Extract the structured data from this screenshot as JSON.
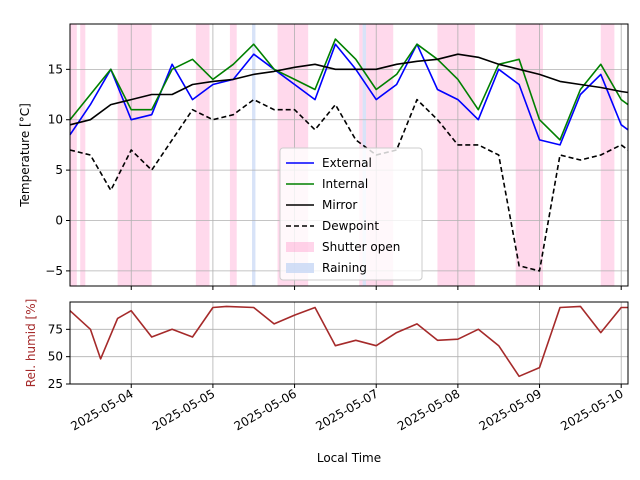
{
  "chart_data": [
    {
      "type": "line",
      "ylabel": "Temperature [°C]",
      "ylim": [
        -6.5,
        19.5
      ],
      "yticks": [
        -5,
        0,
        5,
        10,
        15
      ],
      "xlim": [
        "2025-05-03T06:00",
        "2025-05-10T02:00"
      ],
      "grid": true,
      "legend_position": "center",
      "legend": [
        "External",
        "Internal",
        "Mirror",
        "Dewpoint",
        "Shutter open",
        "Raining"
      ],
      "series": [
        {
          "name": "External",
          "color": "#0000ff",
          "style": "solid",
          "x": [
            "2025-05-03T06:00",
            "2025-05-03T12:00",
            "2025-05-03T18:00",
            "2025-05-04T00:00",
            "2025-05-04T06:00",
            "2025-05-04T12:00",
            "2025-05-04T18:00",
            "2025-05-05T00:00",
            "2025-05-05T06:00",
            "2025-05-05T12:00",
            "2025-05-05T18:00",
            "2025-05-06T00:00",
            "2025-05-06T06:00",
            "2025-05-06T12:00",
            "2025-05-06T18:00",
            "2025-05-07T00:00",
            "2025-05-07T06:00",
            "2025-05-07T12:00",
            "2025-05-07T18:00",
            "2025-05-08T00:00",
            "2025-05-08T06:00",
            "2025-05-08T12:00",
            "2025-05-08T18:00",
            "2025-05-09T00:00",
            "2025-05-09T06:00",
            "2025-05-09T12:00",
            "2025-05-09T18:00",
            "2025-05-10T00:00",
            "2025-05-10T02:00"
          ],
          "y": [
            8.5,
            11.5,
            15,
            10,
            10.5,
            15.5,
            12,
            13.5,
            14,
            16.5,
            15,
            13.5,
            12,
            17.5,
            15,
            12,
            13.5,
            17.5,
            13,
            12,
            10,
            15,
            13.5,
            8,
            7.5,
            12.5,
            14.5,
            9.5,
            9
          ]
        },
        {
          "name": "Internal",
          "color": "#008000",
          "style": "solid",
          "x": [
            "2025-05-03T06:00",
            "2025-05-03T12:00",
            "2025-05-03T18:00",
            "2025-05-04T00:00",
            "2025-05-04T06:00",
            "2025-05-04T12:00",
            "2025-05-04T18:00",
            "2025-05-05T00:00",
            "2025-05-05T06:00",
            "2025-05-05T12:00",
            "2025-05-05T18:00",
            "2025-05-06T00:00",
            "2025-05-06T06:00",
            "2025-05-06T12:00",
            "2025-05-06T18:00",
            "2025-05-07T00:00",
            "2025-05-07T06:00",
            "2025-05-07T12:00",
            "2025-05-07T18:00",
            "2025-05-08T00:00",
            "2025-05-08T06:00",
            "2025-05-08T12:00",
            "2025-05-08T18:00",
            "2025-05-09T00:00",
            "2025-05-09T06:00",
            "2025-05-09T12:00",
            "2025-05-09T18:00",
            "2025-05-10T00:00",
            "2025-05-10T02:00"
          ],
          "y": [
            10,
            12.5,
            15,
            11,
            11,
            15,
            16,
            14,
            15.5,
            17.5,
            15,
            14,
            13,
            18,
            16,
            13,
            14.5,
            17.5,
            16,
            14,
            11,
            15.5,
            16,
            10,
            8,
            13,
            15.5,
            12,
            11.5
          ]
        },
        {
          "name": "Mirror",
          "color": "#000000",
          "style": "solid",
          "x": [
            "2025-05-03T06:00",
            "2025-05-03T12:00",
            "2025-05-03T18:00",
            "2025-05-04T00:00",
            "2025-05-04T06:00",
            "2025-05-04T12:00",
            "2025-05-04T18:00",
            "2025-05-05T00:00",
            "2025-05-05T06:00",
            "2025-05-05T12:00",
            "2025-05-05T18:00",
            "2025-05-06T00:00",
            "2025-05-06T06:00",
            "2025-05-06T12:00",
            "2025-05-06T18:00",
            "2025-05-07T00:00",
            "2025-05-07T06:00",
            "2025-05-07T12:00",
            "2025-05-07T18:00",
            "2025-05-08T00:00",
            "2025-05-08T06:00",
            "2025-05-08T12:00",
            "2025-05-08T18:00",
            "2025-05-09T00:00",
            "2025-05-09T06:00",
            "2025-05-09T12:00",
            "2025-05-09T18:00",
            "2025-05-10T00:00",
            "2025-05-10T02:00"
          ],
          "y": [
            9.5,
            10,
            11.5,
            12,
            12.5,
            12.5,
            13.5,
            13.8,
            14,
            14.5,
            14.8,
            15.2,
            15.5,
            15,
            15,
            15,
            15.5,
            15.8,
            16,
            16.5,
            16.2,
            15.5,
            15,
            14.5,
            13.8,
            13.5,
            13.2,
            12.8,
            12.7
          ]
        },
        {
          "name": "Dewpoint",
          "color": "#000000",
          "style": "dashed",
          "x": [
            "2025-05-03T06:00",
            "2025-05-03T12:00",
            "2025-05-03T18:00",
            "2025-05-04T00:00",
            "2025-05-04T06:00",
            "2025-05-04T12:00",
            "2025-05-04T18:00",
            "2025-05-05T00:00",
            "2025-05-05T06:00",
            "2025-05-05T12:00",
            "2025-05-05T18:00",
            "2025-05-06T00:00",
            "2025-05-06T06:00",
            "2025-05-06T12:00",
            "2025-05-06T18:00",
            "2025-05-07T00:00",
            "2025-05-07T06:00",
            "2025-05-07T12:00",
            "2025-05-07T18:00",
            "2025-05-08T00:00",
            "2025-05-08T06:00",
            "2025-05-08T12:00",
            "2025-05-08T18:00",
            "2025-05-09T00:00",
            "2025-05-09T06:00",
            "2025-05-09T12:00",
            "2025-05-09T18:00",
            "2025-05-10T00:00",
            "2025-05-10T02:00"
          ],
          "y": [
            7,
            6.5,
            3,
            7,
            5,
            8,
            11,
            10,
            10.5,
            12,
            11,
            11,
            9,
            11.5,
            8,
            6.5,
            7,
            12,
            10,
            7.5,
            7.5,
            6.5,
            -4.5,
            -5,
            6.5,
            6,
            6.5,
            7.5,
            7
          ]
        }
      ],
      "shutter_open": [
        [
          "2025-05-03T06:00",
          "2025-05-03T08:00"
        ],
        [
          "2025-05-03T09:00",
          "2025-05-03T10:30"
        ],
        [
          "2025-05-03T20:00",
          "2025-05-04T06:00"
        ],
        [
          "2025-05-04T19:00",
          "2025-05-04T23:00"
        ],
        [
          "2025-05-05T05:00",
          "2025-05-05T07:00"
        ],
        [
          "2025-05-05T19:00",
          "2025-05-06T04:00"
        ],
        [
          "2025-05-06T19:00",
          "2025-05-06T20:00"
        ],
        [
          "2025-05-06T21:00",
          "2025-05-07T05:00"
        ],
        [
          "2025-05-07T18:00",
          "2025-05-08T05:00"
        ],
        [
          "2025-05-08T17:00",
          "2025-05-09T01:00"
        ],
        [
          "2025-05-09T18:00",
          "2025-05-09T22:00"
        ]
      ],
      "raining": [
        [
          "2025-05-05T11:30",
          "2025-05-05T12:30"
        ],
        [
          "2025-05-06T20:00",
          "2025-05-06T21:00"
        ]
      ],
      "colors": {
        "shutter": "#ff69b4",
        "rain": "#c7d7f5"
      }
    },
    {
      "type": "line",
      "ylabel": "Rel. humid [%]",
      "ylim": [
        25,
        100
      ],
      "yticks": [
        25,
        50,
        75
      ],
      "xlabel": "Local Time",
      "xticks": [
        "2025-05-04",
        "2025-05-05",
        "2025-05-06",
        "2025-05-07",
        "2025-05-08",
        "2025-05-09",
        "2025-05-10"
      ],
      "grid": true,
      "series": [
        {
          "name": "",
          "color": "#a52a2a",
          "style": "solid",
          "x": [
            "2025-05-03T06:00",
            "2025-05-03T12:00",
            "2025-05-03T15:00",
            "2025-05-03T20:00",
            "2025-05-04T00:00",
            "2025-05-04T06:00",
            "2025-05-04T12:00",
            "2025-05-04T18:00",
            "2025-05-05T00:00",
            "2025-05-05T04:00",
            "2025-05-05T12:00",
            "2025-05-05T18:00",
            "2025-05-06T00:00",
            "2025-05-06T06:00",
            "2025-05-06T12:00",
            "2025-05-06T18:00",
            "2025-05-07T00:00",
            "2025-05-07T06:00",
            "2025-05-07T12:00",
            "2025-05-07T18:00",
            "2025-05-08T00:00",
            "2025-05-08T06:00",
            "2025-05-08T12:00",
            "2025-05-08T18:00",
            "2025-05-09T00:00",
            "2025-05-09T06:00",
            "2025-05-09T12:00",
            "2025-05-09T18:00",
            "2025-05-10T00:00",
            "2025-05-10T02:00"
          ],
          "y": [
            92,
            75,
            48,
            85,
            92,
            68,
            75,
            68,
            95,
            96,
            95,
            80,
            88,
            95,
            60,
            65,
            60,
            72,
            80,
            65,
            66,
            75,
            60,
            32,
            40,
            95,
            96,
            72,
            95,
            95
          ]
        }
      ]
    }
  ]
}
